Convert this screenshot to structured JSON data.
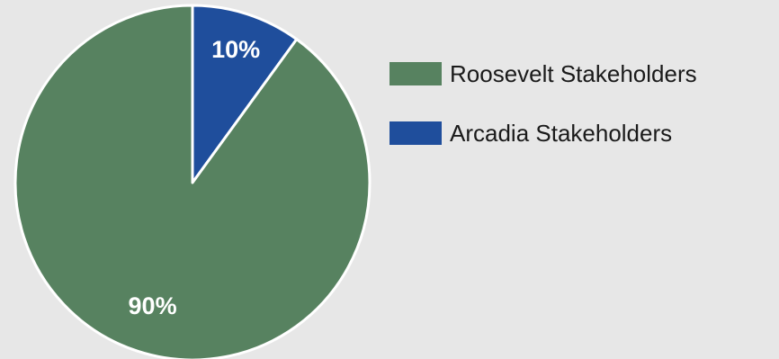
{
  "chart_data": {
    "type": "pie",
    "categories": [
      "Roosevelt Stakeholders",
      "Arcadia Stakeholders"
    ],
    "values": [
      90,
      10
    ],
    "value_labels": [
      "90%",
      "10%"
    ],
    "colors": [
      "#578260",
      "#1f4e9c"
    ],
    "slice_border_color": "#ffffff",
    "start_angle": "12 o'clock, clockwise (Arcadia first)",
    "legend_position": "right-top",
    "title": "",
    "legend": [
      {
        "label": "Roosevelt Stakeholders",
        "color": "#578260"
      },
      {
        "label": "Arcadia Stakeholders",
        "color": "#1f4e9c"
      }
    ]
  }
}
